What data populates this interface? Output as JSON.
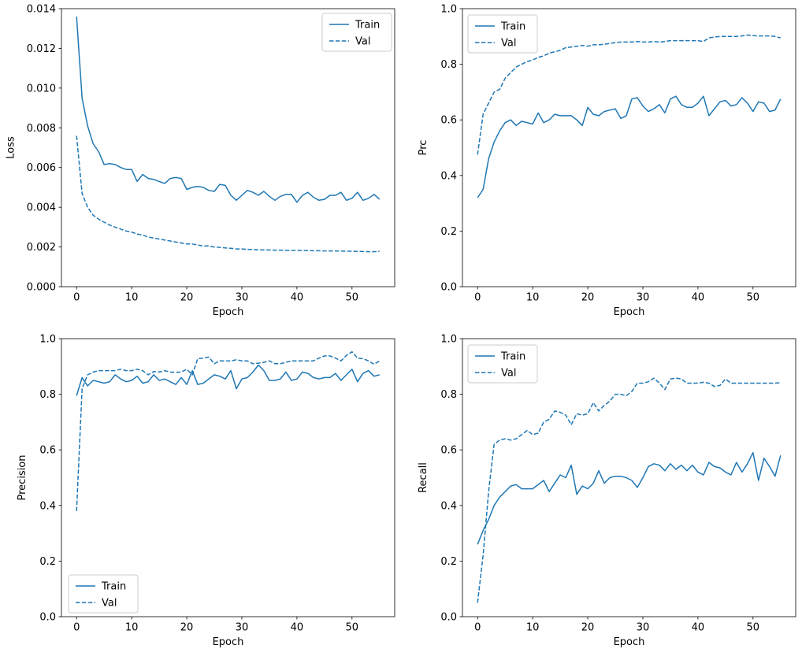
{
  "figure": {
    "background": "#ffffff",
    "line_color": "#1f77b4",
    "spine_color": "#000000",
    "legend_border_color": "#cccccc"
  },
  "epochs": [
    0,
    1,
    2,
    3,
    4,
    5,
    6,
    7,
    8,
    9,
    10,
    11,
    12,
    13,
    14,
    15,
    16,
    17,
    18,
    19,
    20,
    21,
    22,
    23,
    24,
    25,
    26,
    27,
    28,
    29,
    30,
    31,
    32,
    33,
    34,
    35,
    36,
    37,
    38,
    39,
    40,
    41,
    42,
    43,
    44,
    45,
    46,
    47,
    48,
    49,
    50,
    51,
    52,
    53,
    54,
    55
  ],
  "chart_data": [
    {
      "id": "loss",
      "type": "line",
      "title": "",
      "xlabel": "Epoch",
      "ylabel": "Loss",
      "xlim": [
        -2.75,
        57.75
      ],
      "ylim": [
        0,
        0.014
      ],
      "xticks": [
        0,
        10,
        20,
        30,
        40,
        50
      ],
      "xtick_labels": [
        "0",
        "10",
        "20",
        "30",
        "40",
        "50"
      ],
      "yticks": [
        0,
        0.002,
        0.004,
        0.006,
        0.008,
        0.01,
        0.012,
        0.014
      ],
      "ytick_labels": [
        "0.000",
        "0.002",
        "0.004",
        "0.006",
        "0.008",
        "0.010",
        "0.012",
        "0.014"
      ],
      "grid": false,
      "legend": {
        "position": "upper-right",
        "entries": [
          "Train",
          "Val"
        ]
      },
      "series": [
        {
          "name": "Train",
          "style": "solid",
          "values": [
            0.0136,
            0.0095,
            0.0081,
            0.0072,
            0.0068,
            0.00615,
            0.0062,
            0.00615,
            0.006,
            0.0059,
            0.0059,
            0.0053,
            0.00565,
            0.00545,
            0.0054,
            0.0053,
            0.0052,
            0.00545,
            0.0055,
            0.00545,
            0.0049,
            0.005,
            0.00505,
            0.005,
            0.00485,
            0.0048,
            0.00515,
            0.0051,
            0.0046,
            0.00435,
            0.0046,
            0.00485,
            0.00475,
            0.0046,
            0.0048,
            0.00455,
            0.00435,
            0.00455,
            0.00465,
            0.00465,
            0.00425,
            0.0046,
            0.00475,
            0.0045,
            0.00435,
            0.0044,
            0.0046,
            0.0046,
            0.00475,
            0.00435,
            0.00445,
            0.00475,
            0.00435,
            0.00445,
            0.00465,
            0.0044
          ]
        },
        {
          "name": "Val",
          "style": "dashed",
          "values": [
            0.0076,
            0.0047,
            0.004,
            0.0036,
            0.0034,
            0.00325,
            0.0031,
            0.003,
            0.0029,
            0.0028,
            0.00275,
            0.00265,
            0.0026,
            0.0025,
            0.00245,
            0.0024,
            0.00235,
            0.0023,
            0.00225,
            0.0022,
            0.00215,
            0.00215,
            0.0021,
            0.00205,
            0.00205,
            0.002,
            0.00198,
            0.00195,
            0.00193,
            0.0019,
            0.0019,
            0.00188,
            0.00187,
            0.00186,
            0.00185,
            0.00185,
            0.00184,
            0.00184,
            0.00183,
            0.00183,
            0.00183,
            0.00182,
            0.00182,
            0.00181,
            0.00181,
            0.0018,
            0.0018,
            0.0018,
            0.00179,
            0.00179,
            0.00178,
            0.00178,
            0.00177,
            0.00176,
            0.00176,
            0.00178
          ]
        }
      ]
    },
    {
      "id": "prc",
      "type": "line",
      "title": "",
      "xlabel": "Epoch",
      "ylabel": "Prc",
      "xlim": [
        -2.75,
        57.75
      ],
      "ylim": [
        0,
        1.0
      ],
      "xticks": [
        0,
        10,
        20,
        30,
        40,
        50
      ],
      "xtick_labels": [
        "0",
        "10",
        "20",
        "30",
        "40",
        "50"
      ],
      "yticks": [
        0,
        0.2,
        0.4,
        0.6,
        0.8,
        1.0
      ],
      "ytick_labels": [
        "0.0",
        "0.2",
        "0.4",
        "0.6",
        "0.8",
        "1.0"
      ],
      "grid": false,
      "legend": {
        "position": "upper-left",
        "entries": [
          "Train",
          "Val"
        ]
      },
      "series": [
        {
          "name": "Train",
          "style": "solid",
          "values": [
            0.32,
            0.35,
            0.46,
            0.52,
            0.56,
            0.59,
            0.6,
            0.58,
            0.595,
            0.59,
            0.585,
            0.625,
            0.59,
            0.6,
            0.62,
            0.615,
            0.615,
            0.615,
            0.6,
            0.58,
            0.645,
            0.62,
            0.615,
            0.63,
            0.635,
            0.64,
            0.605,
            0.615,
            0.675,
            0.68,
            0.65,
            0.63,
            0.64,
            0.655,
            0.625,
            0.675,
            0.685,
            0.655,
            0.645,
            0.645,
            0.66,
            0.685,
            0.615,
            0.64,
            0.665,
            0.67,
            0.65,
            0.655,
            0.68,
            0.66,
            0.63,
            0.665,
            0.66,
            0.63,
            0.635,
            0.675
          ]
        },
        {
          "name": "Val",
          "style": "dashed",
          "values": [
            0.475,
            0.62,
            0.66,
            0.7,
            0.71,
            0.75,
            0.77,
            0.79,
            0.8,
            0.81,
            0.815,
            0.825,
            0.83,
            0.84,
            0.845,
            0.85,
            0.86,
            0.862,
            0.865,
            0.868,
            0.865,
            0.87,
            0.87,
            0.872,
            0.875,
            0.878,
            0.88,
            0.88,
            0.88,
            0.882,
            0.88,
            0.88,
            0.882,
            0.88,
            0.882,
            0.885,
            0.885,
            0.885,
            0.885,
            0.885,
            0.885,
            0.882,
            0.895,
            0.898,
            0.9,
            0.9,
            0.9,
            0.9,
            0.902,
            0.905,
            0.903,
            0.902,
            0.902,
            0.902,
            0.9,
            0.895
          ]
        }
      ]
    },
    {
      "id": "precision",
      "type": "line",
      "title": "",
      "xlabel": "Epoch",
      "ylabel": "Precision",
      "xlim": [
        -2.75,
        57.75
      ],
      "ylim": [
        0,
        1.0
      ],
      "xticks": [
        0,
        10,
        20,
        30,
        40,
        50
      ],
      "xtick_labels": [
        "0",
        "10",
        "20",
        "30",
        "40",
        "50"
      ],
      "yticks": [
        0,
        0.2,
        0.4,
        0.6,
        0.8,
        1.0
      ],
      "ytick_labels": [
        "0.0",
        "0.2",
        "0.4",
        "0.6",
        "0.8",
        "1.0"
      ],
      "grid": false,
      "legend": {
        "position": "lower-left",
        "entries": [
          "Train",
          "Val"
        ]
      },
      "series": [
        {
          "name": "Train",
          "style": "solid",
          "values": [
            0.795,
            0.86,
            0.83,
            0.85,
            0.845,
            0.84,
            0.845,
            0.87,
            0.855,
            0.845,
            0.85,
            0.865,
            0.84,
            0.845,
            0.87,
            0.85,
            0.855,
            0.845,
            0.835,
            0.86,
            0.835,
            0.885,
            0.835,
            0.84,
            0.855,
            0.87,
            0.865,
            0.855,
            0.885,
            0.82,
            0.855,
            0.86,
            0.88,
            0.905,
            0.885,
            0.85,
            0.85,
            0.855,
            0.88,
            0.85,
            0.855,
            0.88,
            0.875,
            0.86,
            0.855,
            0.86,
            0.86,
            0.875,
            0.85,
            0.87,
            0.89,
            0.845,
            0.875,
            0.885,
            0.865,
            0.87
          ]
        },
        {
          "name": "Val",
          "style": "dashed",
          "values": [
            0.38,
            0.82,
            0.87,
            0.88,
            0.885,
            0.885,
            0.885,
            0.885,
            0.89,
            0.885,
            0.885,
            0.89,
            0.885,
            0.87,
            0.882,
            0.88,
            0.885,
            0.88,
            0.879,
            0.88,
            0.89,
            0.87,
            0.928,
            0.93,
            0.934,
            0.91,
            0.92,
            0.92,
            0.92,
            0.924,
            0.92,
            0.92,
            0.91,
            0.912,
            0.915,
            0.92,
            0.91,
            0.91,
            0.915,
            0.92,
            0.92,
            0.92,
            0.92,
            0.92,
            0.93,
            0.938,
            0.938,
            0.93,
            0.92,
            0.94,
            0.953,
            0.93,
            0.928,
            0.92,
            0.908,
            0.92
          ]
        }
      ]
    },
    {
      "id": "recall",
      "type": "line",
      "title": "",
      "xlabel": "Epoch",
      "ylabel": "Recall",
      "xlim": [
        -2.75,
        57.75
      ],
      "ylim": [
        0,
        1.0
      ],
      "xticks": [
        0,
        10,
        20,
        30,
        40,
        50
      ],
      "xtick_labels": [
        "0",
        "10",
        "20",
        "30",
        "40",
        "50"
      ],
      "yticks": [
        0,
        0.2,
        0.4,
        0.6,
        0.8,
        1.0
      ],
      "ytick_labels": [
        "0.0",
        "0.2",
        "0.4",
        "0.6",
        "0.8",
        "1.0"
      ],
      "grid": false,
      "legend": {
        "position": "upper-left",
        "entries": [
          "Train",
          "Val"
        ]
      },
      "series": [
        {
          "name": "Train",
          "style": "solid",
          "values": [
            0.26,
            0.31,
            0.35,
            0.4,
            0.43,
            0.45,
            0.47,
            0.475,
            0.46,
            0.46,
            0.46,
            0.475,
            0.49,
            0.45,
            0.48,
            0.51,
            0.5,
            0.545,
            0.44,
            0.47,
            0.46,
            0.48,
            0.525,
            0.48,
            0.5,
            0.505,
            0.505,
            0.5,
            0.49,
            0.465,
            0.5,
            0.54,
            0.55,
            0.545,
            0.525,
            0.55,
            0.53,
            0.545,
            0.525,
            0.545,
            0.52,
            0.51,
            0.555,
            0.54,
            0.535,
            0.52,
            0.51,
            0.555,
            0.52,
            0.55,
            0.59,
            0.49,
            0.57,
            0.54,
            0.505,
            0.58
          ]
        },
        {
          "name": "Val",
          "style": "dashed",
          "values": [
            0.05,
            0.22,
            0.45,
            0.62,
            0.635,
            0.64,
            0.635,
            0.64,
            0.655,
            0.67,
            0.655,
            0.66,
            0.7,
            0.71,
            0.74,
            0.735,
            0.725,
            0.69,
            0.73,
            0.725,
            0.73,
            0.77,
            0.74,
            0.76,
            0.775,
            0.8,
            0.8,
            0.795,
            0.81,
            0.84,
            0.84,
            0.845,
            0.858,
            0.84,
            0.817,
            0.855,
            0.858,
            0.855,
            0.84,
            0.84,
            0.84,
            0.843,
            0.84,
            0.828,
            0.832,
            0.855,
            0.84,
            0.84,
            0.84,
            0.84,
            0.84,
            0.84,
            0.84,
            0.84,
            0.84,
            0.842
          ]
        }
      ]
    }
  ]
}
